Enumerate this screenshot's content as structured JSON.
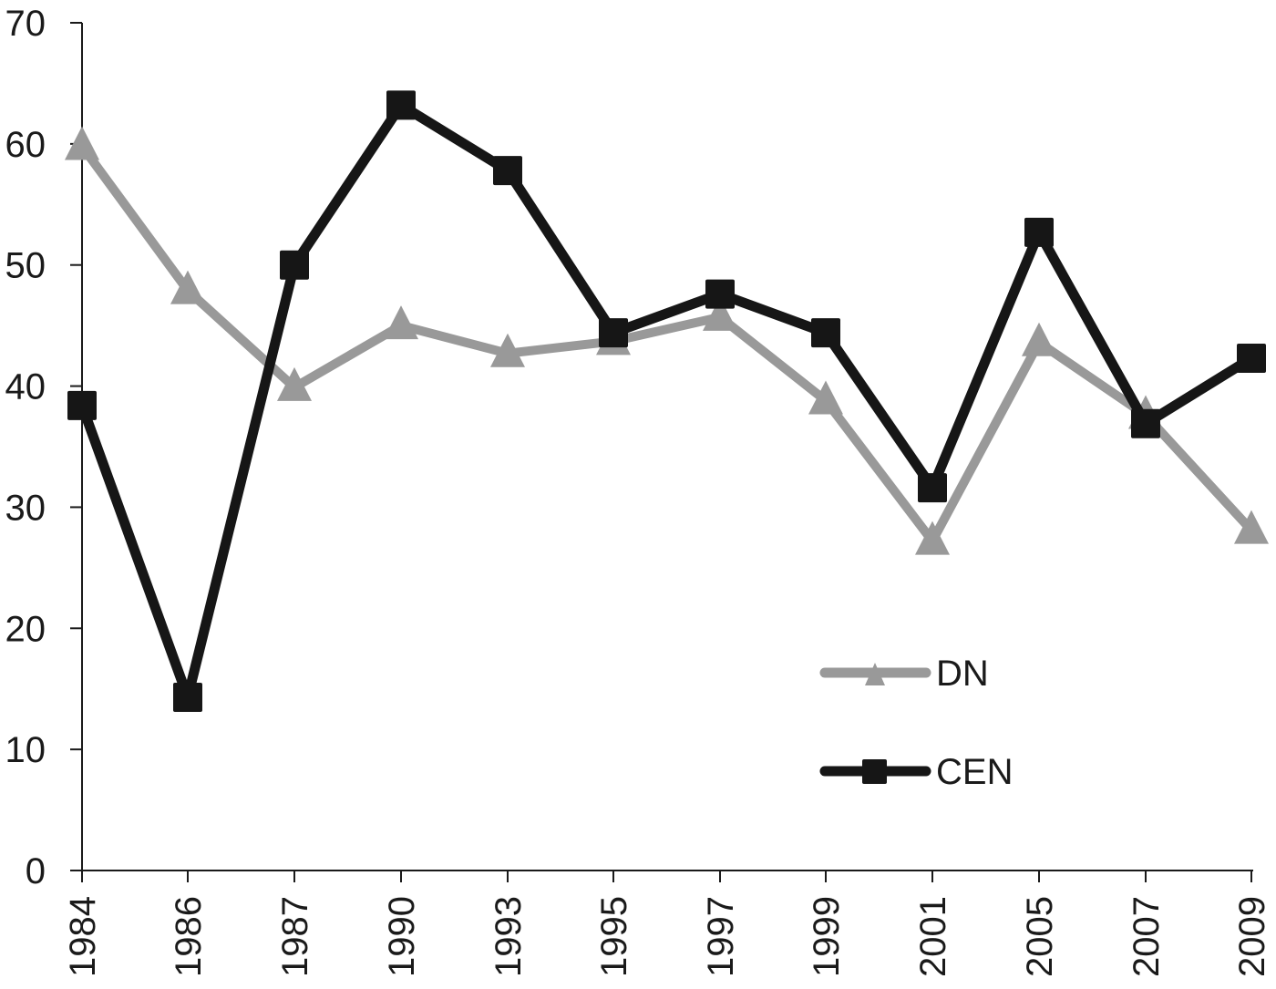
{
  "chart_data": {
    "type": "line",
    "title": "",
    "xlabel": "",
    "ylabel": "",
    "ylim": [
      0,
      70
    ],
    "yticks": [
      0,
      10,
      20,
      30,
      40,
      50,
      60,
      70
    ],
    "grid": false,
    "legend_position": "inside-lower-right",
    "categories": [
      "1984",
      "1986",
      "1987",
      "1990",
      "1993",
      "1995",
      "1997",
      "1999",
      "2001",
      "2005",
      "2007",
      "2009"
    ],
    "series": [
      {
        "name": "DN",
        "color": "#999999",
        "marker": "triangle",
        "values": [
          59.8,
          47.9,
          39.9,
          45.0,
          42.7,
          43.7,
          45.7,
          38.8,
          27.2,
          43.6,
          37.6,
          28.1
        ]
      },
      {
        "name": "CEN",
        "color": "#161616",
        "marker": "square",
        "values": [
          38.4,
          14.3,
          50.0,
          63.2,
          57.8,
          44.4,
          47.6,
          44.4,
          31.6,
          52.7,
          36.9,
          42.3
        ]
      }
    ]
  },
  "legend": {
    "items": [
      {
        "label": "DN"
      },
      {
        "label": "CEN"
      }
    ]
  }
}
